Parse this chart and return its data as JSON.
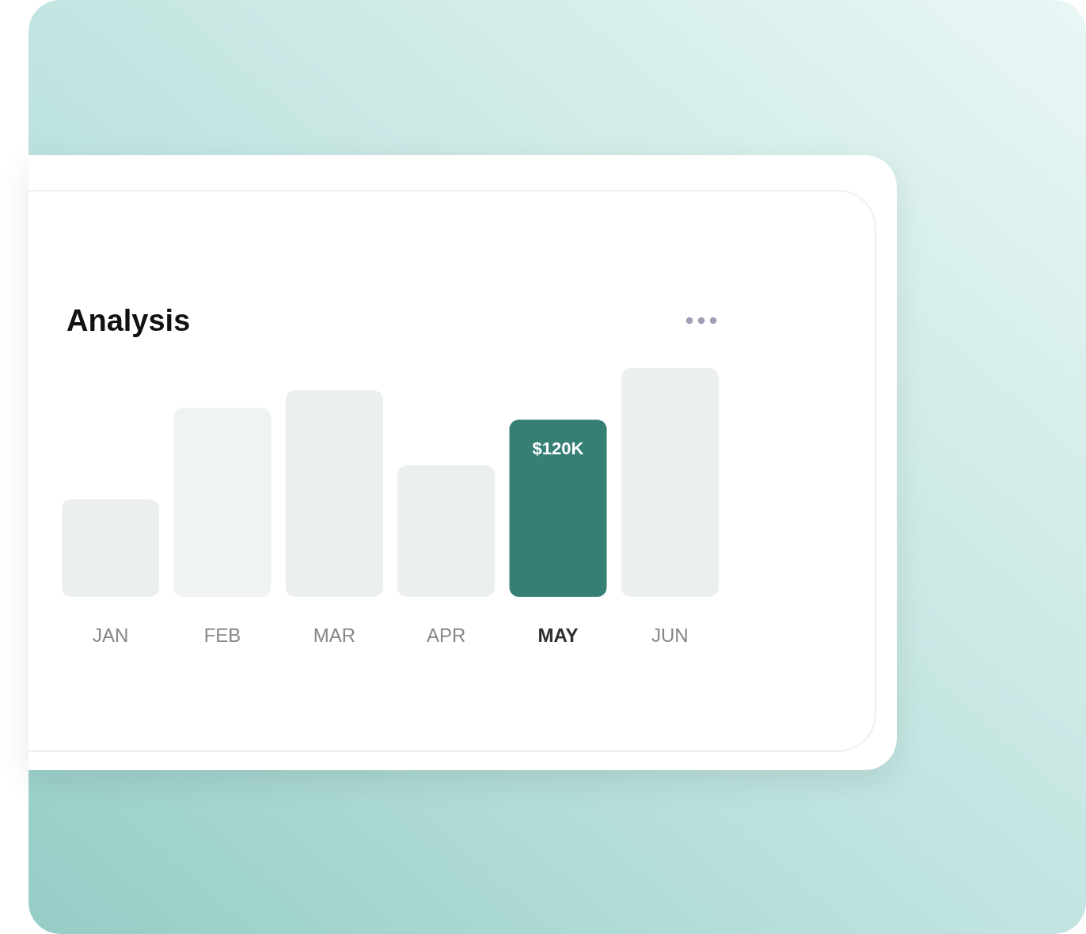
{
  "chart_data": {
    "type": "bar",
    "title": "Analysis",
    "categories": [
      "JAN",
      "FEB",
      "MAR",
      "APR",
      "MAY",
      "JUN"
    ],
    "values": [
      66,
      128,
      140,
      89,
      120,
      155
    ],
    "value_labels": [
      null,
      null,
      null,
      null,
      "$120K",
      null
    ],
    "colors": [
      "#ebefee",
      "#eff3f2",
      "#ebefee",
      "#ebefee",
      "#357f75",
      "#ebefee"
    ]
  }
}
